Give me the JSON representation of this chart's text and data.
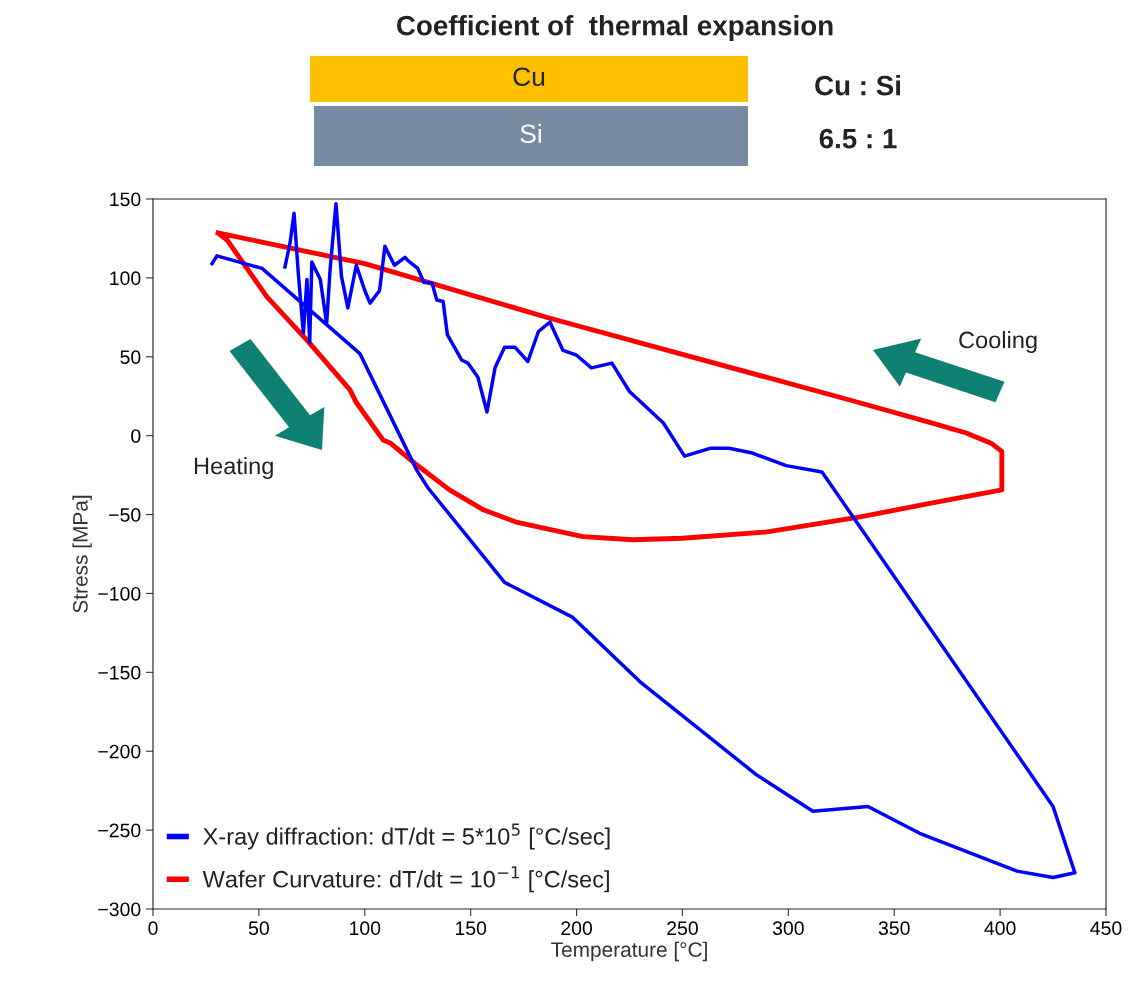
{
  "chart_data": {
    "type": "line",
    "title": "Coefficient of  thermal expansion",
    "xlabel": "Temperature [°C]",
    "ylabel": "Stress [MPa]",
    "xlim": [
      0,
      450
    ],
    "xticks": [
      0,
      50,
      100,
      150,
      200,
      250,
      300,
      350,
      400,
      450
    ],
    "ylim": [
      -300,
      150
    ],
    "yticks": [
      -300,
      -250,
      -200,
      -150,
      -100,
      -50,
      0,
      50,
      100,
      150
    ],
    "grid": false,
    "legend": "bottom left",
    "marker": "none",
    "line_style": "solid",
    "series": [
      {
        "name": "X-ray diffraction: dT/dt = 5*10$^{5}$ [°C/sec]",
        "color": "#0000ff",
        "x": [
          27.9,
          30.2,
          51.5,
          97.7,
          124.6,
          129.8,
          166,
          198,
          230,
          285,
          311.6,
          337.6,
          362,
          408,
          425,
          435.3,
          425,
          315.9,
          299,
          283,
          272,
          263,
          251,
          241,
          225,
          216.7,
          207,
          200,
          193.6,
          187.4,
          182,
          177,
          171,
          166,
          161.5,
          157.7,
          153.4,
          148.7,
          145.7,
          139,
          137,
          134,
          131.7,
          128,
          125,
          120.4,
          119,
          114,
          109.5,
          107,
          102.5,
          100,
          96,
          92,
          89,
          86.4,
          83.6,
          82,
          79,
          75,
          74,
          72.7,
          71,
          68.6,
          66.6,
          64.7,
          62.3
        ],
        "values": [
          109,
          114,
          106,
          52,
          -22,
          -33,
          -93,
          -115,
          -156,
          -215,
          -238,
          -235,
          -252,
          -276,
          -280,
          -277,
          -235,
          -23,
          -19,
          -11,
          -8,
          -8,
          -13,
          8,
          28,
          46,
          43,
          51,
          54,
          72,
          66,
          47,
          56,
          56,
          43,
          15,
          37,
          46,
          48,
          64,
          85,
          86,
          97,
          97,
          106,
          111,
          113,
          108,
          120,
          92,
          84,
          92,
          108,
          81,
          101,
          147,
          105,
          71,
          99,
          110,
          59,
          99,
          65,
          103,
          141,
          122,
          107
        ]
      },
      {
        "name": "Wafer Curvature: dT/dt = 10$^{−1}$ [°C/sec]",
        "color": "#ff0000",
        "x": [
          30.7,
          100,
          187,
          329,
          368,
          384,
          396,
          400.8,
          400.8,
          368,
          334,
          290,
          250,
          226.6,
          203,
          172,
          156,
          140,
          124.6,
          112,
          108.6,
          96,
          93,
          72.7,
          53.8,
          35,
          31.6
        ],
        "values": [
          128.5,
          109,
          74.6,
          22.6,
          8,
          1.7,
          -5,
          -10,
          -34.4,
          -42.6,
          -51.5,
          -61,
          -65,
          -66,
          -64,
          -55,
          -47,
          -34.4,
          -18.6,
          -4.6,
          -2.7,
          21,
          29,
          60.6,
          88,
          124,
          127.5
        ]
      }
    ],
    "annotations": [
      "Cu",
      "Si",
      "Cu : Si",
      "6.5 : 1",
      "Heating",
      "Cooling"
    ]
  }
}
